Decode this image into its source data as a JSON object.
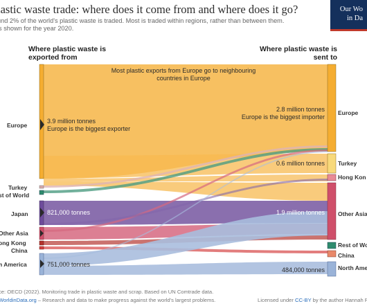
{
  "header": {
    "title": "lastic waste trade: where does it come from and where does it go?",
    "subtitle_1": "und 2% of the world's plastic waste is traded. Most is traded within regions, rather than between them.",
    "subtitle_2": "is shown for the year 2020."
  },
  "logo": {
    "line1": "Our Wo",
    "line2": "in Da"
  },
  "diagram": {
    "left_header": [
      "Where plastic waste is",
      "exported from"
    ],
    "right_header": [
      "Where plastic waste is",
      "sent to"
    ],
    "sources": [
      {
        "label": "Europe",
        "color": "#f5ad31"
      },
      {
        "label": "Turkey",
        "color": "#d8a8a8"
      },
      {
        "label": "st of World",
        "color": "#2e8b6d"
      },
      {
        "label": "Japan",
        "color": "#6e4c9b"
      },
      {
        "label": "Other Asia",
        "color": "#cf4f6a"
      },
      {
        "label": "ong Kong",
        "color": "#b3322c"
      },
      {
        "label": "China",
        "color": "#d44040"
      },
      {
        "label": "h America",
        "color": "#9ab3d8"
      }
    ],
    "destinations": [
      {
        "label": "Europe",
        "color": "#f5ad31"
      },
      {
        "label": "Turkey",
        "color": "#f8d97a"
      },
      {
        "label": "Hong Kon",
        "color": "#e88b96"
      },
      {
        "label": "Other Asia",
        "color": "#cf4f6a"
      },
      {
        "label": "Rest of Wo",
        "color": "#2e8b6d"
      },
      {
        "label": "China",
        "color": "#e9896a"
      },
      {
        "label": "North Ame",
        "color": "#9ab3d8"
      }
    ],
    "annotations": {
      "top_note": [
        "Most plastic exports from Europe go to neighbouring",
        "countries in Europe"
      ],
      "europe_export": [
        "3.9 million tonnes",
        "Europe is the biggest exporter"
      ],
      "europe_import": [
        "2.8 million tonnes",
        "Europe is the biggest importer"
      ],
      "turkey_import": "0.6 million tonnes",
      "japan_export": "821,000 tonnes",
      "other_asia_import": "1.9 million tonnes",
      "north_america_export": "751,000 tonnes",
      "north_america_import": "484,000 tonnes"
    }
  },
  "footer": {
    "source": "ce: OECD (2022). Monitoring trade in plastic waste and scrap. Based on UN Comtrade data.",
    "site": "WorldinData.org",
    "mission": " – Research and data to make progress against the world's largest problems.",
    "license_prefix": "Licensed under ",
    "license_link": "CC-BY",
    "license_suffix": " by the author Hannah Rit"
  }
}
